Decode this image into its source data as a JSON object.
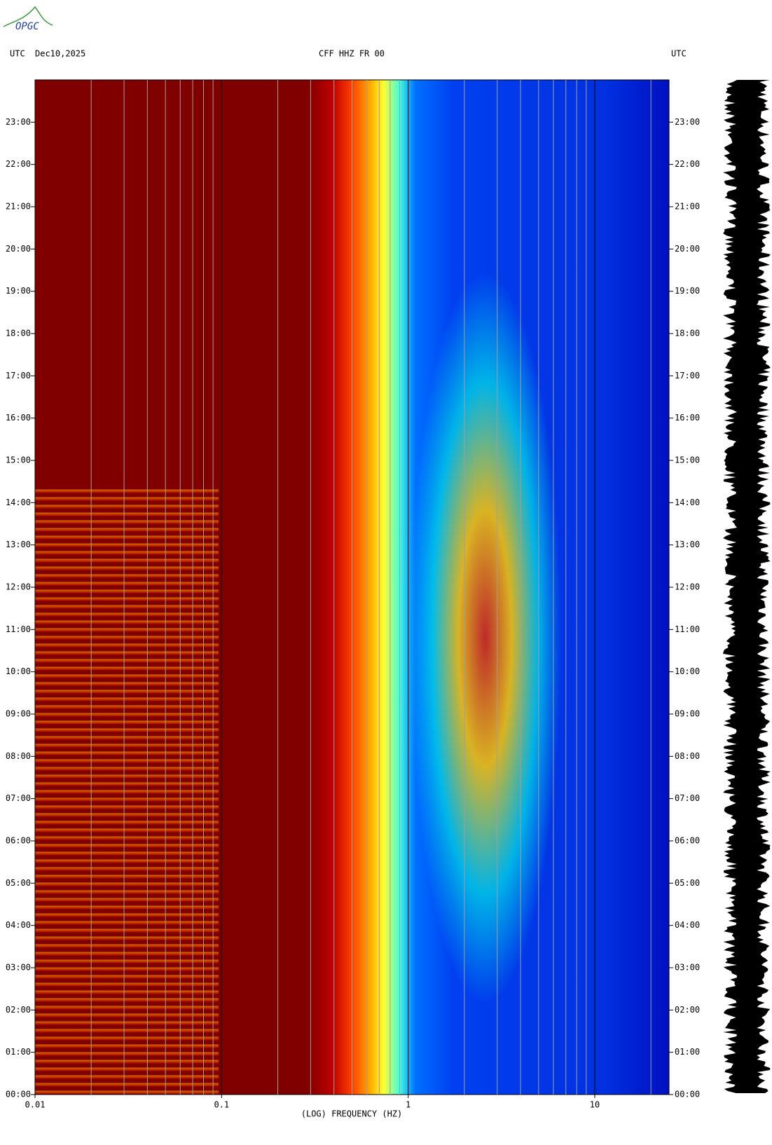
{
  "logo": "OPGC",
  "chart_data": {
    "type": "spectrogram",
    "title": "CFF HHZ FR 00",
    "time_zone_left": "UTC",
    "date": "Dec10,2025",
    "time_zone_right": "UTC",
    "xlabel": "(LOG) FREQUENCY (HZ)",
    "xscale": "log",
    "xlim": [
      0.01,
      25
    ],
    "xticks": [
      0.01,
      0.1,
      1,
      10
    ],
    "xgrid": [
      0.02,
      0.03,
      0.04,
      0.05,
      0.06,
      0.07,
      0.08,
      0.09,
      0.2,
      0.3,
      0.4,
      0.5,
      0.6,
      0.7,
      0.8,
      0.9,
      2,
      3,
      4,
      5,
      6,
      7,
      8,
      9,
      20
    ],
    "ylim": [
      0,
      24
    ],
    "yticks": [
      {
        "value": 0,
        "label": "00:00"
      },
      {
        "value": 1,
        "label": "01:00"
      },
      {
        "value": 2,
        "label": "02:00"
      },
      {
        "value": 3,
        "label": "03:00"
      },
      {
        "value": 4,
        "label": "04:00"
      },
      {
        "value": 5,
        "label": "05:00"
      },
      {
        "value": 6,
        "label": "06:00"
      },
      {
        "value": 7,
        "label": "07:00"
      },
      {
        "value": 8,
        "label": "08:00"
      },
      {
        "value": 9,
        "label": "09:00"
      },
      {
        "value": 10,
        "label": "10:00"
      },
      {
        "value": 11,
        "label": "11:00"
      },
      {
        "value": 12,
        "label": "12:00"
      },
      {
        "value": 13,
        "label": "13:00"
      },
      {
        "value": 14,
        "label": "14:00"
      },
      {
        "value": 15,
        "label": "15:00"
      },
      {
        "value": 16,
        "label": "16:00"
      },
      {
        "value": 17,
        "label": "17:00"
      },
      {
        "value": 18,
        "label": "18:00"
      },
      {
        "value": 19,
        "label": "19:00"
      },
      {
        "value": 20,
        "label": "20:00"
      },
      {
        "value": 21,
        "label": "21:00"
      },
      {
        "value": 22,
        "label": "22:00"
      },
      {
        "value": 23,
        "label": "23:00"
      }
    ]
  }
}
